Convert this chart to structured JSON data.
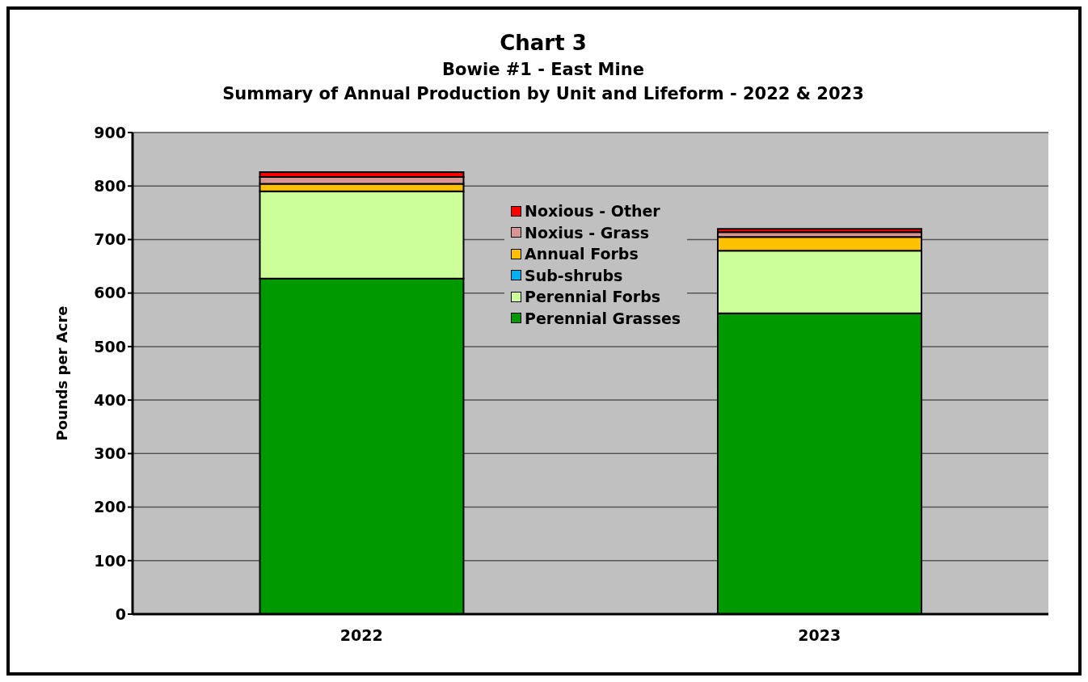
{
  "chart_data": {
    "type": "bar",
    "title": "Chart 3",
    "subtitle": "Bowie #1 - East Mine\nSummary of Annual Production by Unit and Lifeform - 2022 & 2023",
    "ylabel": "Pounds per Acre",
    "categories": [
      "2022",
      "2023"
    ],
    "stacked": true,
    "ylim": [
      0,
      900
    ],
    "yticks": [
      0,
      100,
      200,
      300,
      400,
      500,
      600,
      700,
      800,
      900
    ],
    "grid": "y",
    "legend": "top",
    "series": [
      {
        "name": "Perennial Grasses",
        "color": "#009900",
        "values": [
          627,
          562
        ]
      },
      {
        "name": "Perennial Forbs",
        "color": "#ccff99",
        "values": [
          163,
          117
        ]
      },
      {
        "name": "Sub-shrubs",
        "color": "#00b0f0",
        "values": [
          0,
          0
        ]
      },
      {
        "name": "Annual Forbs",
        "color": "#ffc000",
        "values": [
          14,
          26
        ]
      },
      {
        "name": "Noxius - Grass",
        "color": "#d99594",
        "values": [
          13,
          9
        ]
      },
      {
        "name": "Noxious - Other",
        "color": "#ff0000",
        "values": [
          9,
          6
        ]
      }
    ]
  }
}
